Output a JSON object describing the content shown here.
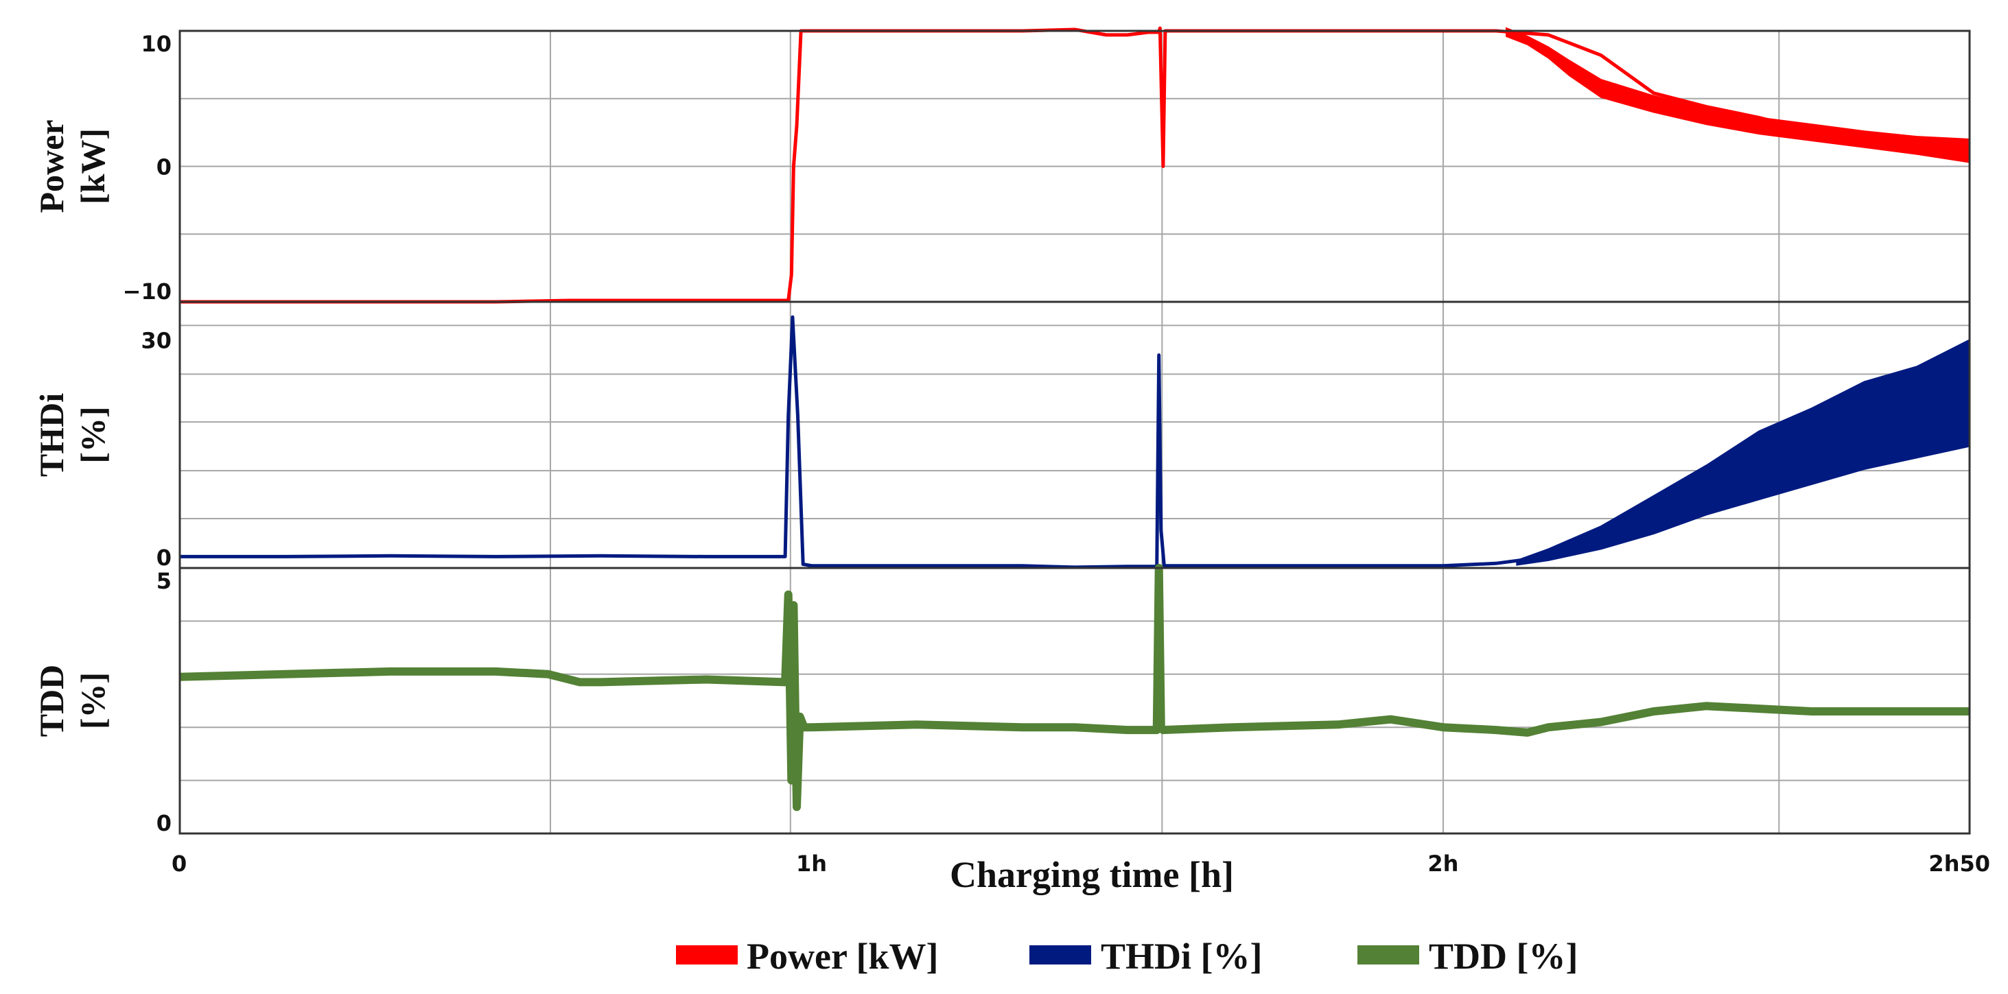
{
  "chart_data": {
    "type": "line",
    "xlabel": "Charging time [h]",
    "x_unit": "min",
    "xlim": [
      0,
      170
    ],
    "x_ticks": [
      {
        "value": 0,
        "label": "0"
      },
      {
        "value": 60,
        "label": "1h"
      },
      {
        "value": 120,
        "label": "2h"
      },
      {
        "value": 170,
        "label": "2h50"
      }
    ],
    "x_gridlines": [
      0,
      35.2,
      58,
      93.3,
      120,
      151.9,
      170
    ],
    "grid": true,
    "legend": {
      "position": "bottom-center",
      "entries": [
        {
          "label": "Power [kW]",
          "color": "#ff0000"
        },
        {
          "label": "THDi [%]",
          "color": "#001a80"
        },
        {
          "label": "TDD [%]",
          "color": "#538135"
        }
      ]
    },
    "panels": [
      {
        "name": "power",
        "ylabel": [
          "Power",
          "[kW]"
        ],
        "ylim": [
          -10,
          10
        ],
        "y_ticks": [
          {
            "value": 10,
            "label": "10"
          },
          {
            "value": 0,
            "label": "0"
          },
          {
            "value": -10,
            "label": "−10"
          }
        ],
        "y_grid": [
          -10,
          -5,
          0,
          5,
          10
        ],
        "color": "#ff0000",
        "band": false,
        "series": {
          "name": "Power [kW]",
          "x": [
            0,
            10,
            20,
            30,
            37,
            40,
            50,
            57.8,
            58.1,
            58.3,
            58.6,
            59,
            60,
            70,
            80,
            85,
            88,
            90,
            92,
            93,
            93.1,
            93.4,
            93.6,
            94,
            100,
            110,
            120,
            125,
            130,
            135,
            140,
            145,
            150,
            155,
            160,
            165,
            170
          ],
          "y": [
            -10,
            -10,
            -10,
            -10,
            -9.9,
            -9.9,
            -9.9,
            -9.9,
            -8,
            0,
            3,
            10,
            10,
            10,
            10,
            10.1,
            9.7,
            9.7,
            9.9,
            9.9,
            10.2,
            0,
            10,
            10,
            10,
            10,
            10,
            10,
            9.7,
            8.2,
            5.4,
            4.4,
            3.6,
            2.6,
            2.1,
            1.6,
            1.1
          ]
        },
        "upper": {
          "x": [
            126,
            128,
            130,
            132,
            135,
            140,
            145,
            150,
            155,
            160,
            165,
            170
          ],
          "y": [
            10.2,
            9.6,
            8.8,
            7.8,
            6.4,
            5.2,
            4.3,
            3.6,
            3.1,
            2.6,
            2.2,
            2.0
          ]
        },
        "lower": {
          "x": [
            126,
            128,
            130,
            132,
            135,
            140,
            145,
            150,
            155,
            160,
            165,
            170
          ],
          "y": [
            9.6,
            9.0,
            8.0,
            6.7,
            5.1,
            4.0,
            3.1,
            2.4,
            1.9,
            1.4,
            0.9,
            0.3
          ]
        }
      },
      {
        "name": "thdi",
        "ylabel": [
          "THDi",
          "[%]"
        ],
        "ylim": [
          0,
          35
        ],
        "y_ticks": [
          {
            "value": 30,
            "label": "30"
          },
          {
            "value": 0,
            "label": "0"
          }
        ],
        "y_grid": [
          0,
          6.5,
          12.8,
          19.2,
          25.5,
          31.9
        ],
        "color": "#001a80",
        "band": true,
        "series": {
          "name": "THDi [%]",
          "x": [
            0,
            10,
            20,
            30,
            40,
            50,
            57.5,
            57.8,
            58.2,
            58.7,
            59.2,
            60,
            70,
            80,
            85,
            90,
            92.8,
            93,
            93.2,
            93.5,
            95,
            100,
            110,
            120,
            125,
            130,
            135,
            140,
            145,
            150,
            155,
            160,
            165,
            170
          ],
          "y": [
            1.5,
            1.5,
            1.6,
            1.5,
            1.6,
            1.5,
            1.5,
            20,
            33,
            20,
            0.5,
            0.3,
            0.3,
            0.3,
            0.1,
            0.2,
            0.2,
            28,
            5,
            0.3,
            0.3,
            0.3,
            0.3,
            0.3,
            0.6,
            1.5,
            4,
            6.5,
            9,
            11.5,
            14,
            16,
            17.5,
            19.5
          ]
        },
        "upper": {
          "x": [
            127,
            130,
            135,
            140,
            145,
            150,
            155,
            160,
            165,
            170
          ],
          "y": [
            1.0,
            2.5,
            5.5,
            9.5,
            13.5,
            18,
            21,
            24.5,
            26.5,
            30
          ]
        },
        "lower": {
          "x": [
            127,
            130,
            135,
            140,
            145,
            150,
            155,
            160,
            165,
            170
          ],
          "y": [
            0.4,
            1.0,
            2.5,
            4.5,
            7.0,
            9.0,
            11.0,
            13.0,
            14.5,
            16.0
          ]
        }
      },
      {
        "name": "tdd",
        "ylabel": [
          "TDD",
          "[%]"
        ],
        "ylim": [
          0,
          5
        ],
        "y_ticks": [
          {
            "value": 5,
            "label": "5"
          },
          {
            "value": 0,
            "label": "0"
          }
        ],
        "y_grid": [
          0,
          1,
          2,
          3,
          4,
          5
        ],
        "color": "#538135",
        "band": false,
        "series": {
          "name": "TDD [%]",
          "x": [
            0,
            10,
            20,
            30,
            35,
            38,
            40,
            50,
            57.5,
            57.8,
            58.1,
            58.3,
            58.6,
            58.9,
            59.3,
            60,
            70,
            80,
            85,
            90,
            92.8,
            93,
            93.2,
            93.4,
            100,
            110,
            115,
            120,
            125,
            128,
            130,
            135,
            140,
            145,
            150,
            155,
            160,
            165,
            170
          ],
          "y": [
            2.95,
            3.0,
            3.05,
            3.05,
            3.0,
            2.85,
            2.85,
            2.9,
            2.85,
            4.5,
            1.0,
            4.3,
            0.5,
            2.2,
            2.0,
            2.0,
            2.05,
            2.0,
            2.0,
            1.95,
            1.95,
            5.0,
            2.0,
            1.95,
            2.0,
            2.05,
            2.15,
            2.0,
            1.95,
            1.9,
            2.0,
            2.1,
            2.3,
            2.4,
            2.35,
            2.3,
            2.3,
            2.3,
            2.3
          ]
        }
      }
    ]
  }
}
